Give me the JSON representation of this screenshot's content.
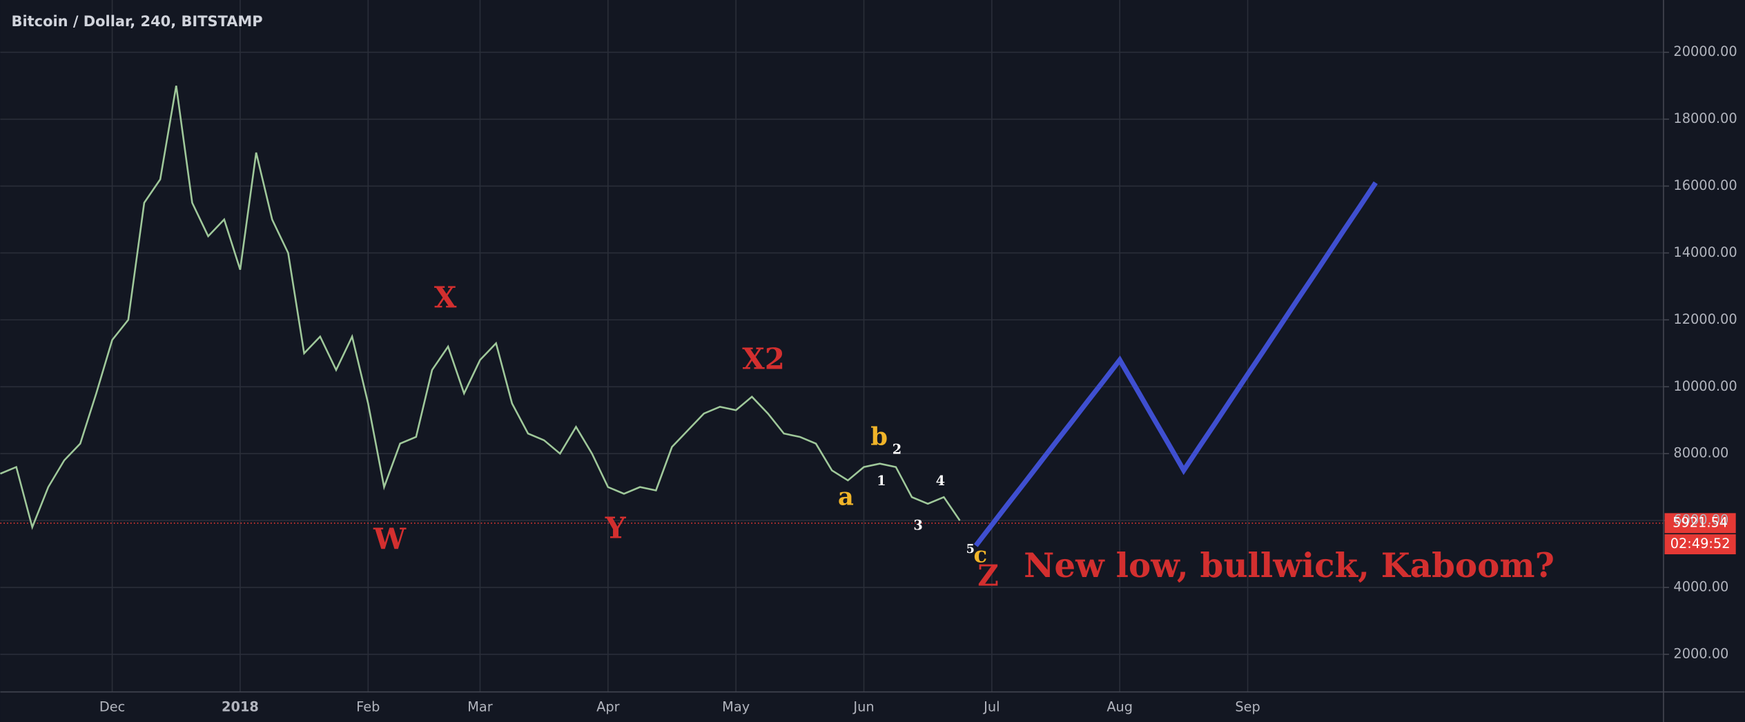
{
  "chart_data": {
    "type": "line",
    "title": "Bitcoin / Dollar, 240, BITSTAMP",
    "categories": [
      null,
      null,
      null,
      null,
      null,
      null,
      null,
      "Dec",
      null,
      null,
      null,
      null,
      null,
      null,
      null,
      "2018",
      null,
      null,
      null,
      null,
      null,
      null,
      null,
      "Feb",
      null,
      null,
      null,
      null,
      null,
      null,
      "Mar",
      null,
      null,
      null,
      null,
      null,
      null,
      null,
      "Apr",
      null,
      null,
      null,
      null,
      null,
      null,
      null,
      "May",
      null,
      null,
      null,
      null,
      null,
      null,
      null,
      "Jun",
      null,
      null,
      null,
      null,
      null,
      null,
      null,
      "Jul",
      null,
      null,
      null,
      null,
      null,
      null,
      null,
      "Aug",
      null,
      null,
      null,
      null,
      null,
      null,
      null,
      "Sep",
      null,
      null,
      null,
      null,
      null,
      null,
      null,
      null,
      null,
      null,
      null,
      null,
      null,
      null,
      null,
      null,
      null,
      null,
      null,
      null,
      null,
      null,
      null,
      null,
      null
    ],
    "series": [
      {
        "color": "#9fc89a",
        "values": [
          7400,
          7600,
          5800,
          7000,
          7800,
          8300,
          9800,
          11400,
          12000,
          15500,
          16200,
          19000,
          15500,
          14500,
          15000,
          13500,
          17000,
          15000,
          14000,
          11000,
          11500,
          10500,
          11500,
          9500,
          7000,
          8300,
          8500,
          10500,
          11200,
          9800,
          10800,
          11300,
          9500,
          8600,
          8400,
          8000,
          8800,
          8000,
          7000,
          6800,
          7000,
          6900,
          8200,
          8700,
          9200,
          9400,
          9300,
          9700,
          9200,
          8600,
          8500,
          8300,
          7500,
          7200,
          7600,
          7700,
          7600,
          6700,
          6500,
          6700,
          6000,
          null,
          null,
          null,
          null,
          null,
          null,
          null,
          null,
          null,
          null,
          null,
          null,
          null,
          null,
          null,
          null,
          null,
          null,
          null,
          null,
          null,
          null,
          null,
          null,
          null,
          null,
          null,
          null,
          null,
          null,
          null,
          null,
          null,
          null,
          null,
          null,
          null,
          null,
          null,
          null,
          null,
          null,
          null
        ]
      },
      {
        "color": "#3f4fd0",
        "values": [
          null,
          null,
          null,
          null,
          null,
          null,
          null,
          null,
          null,
          null,
          null,
          null,
          null,
          null,
          null,
          null,
          null,
          null,
          null,
          null,
          null,
          null,
          null,
          null,
          null,
          null,
          null,
          null,
          null,
          null,
          null,
          null,
          null,
          null,
          null,
          null,
          null,
          null,
          null,
          null,
          null,
          null,
          null,
          null,
          null,
          null,
          null,
          null,
          null,
          null,
          null,
          null,
          null,
          null,
          null,
          null,
          null,
          null,
          null,
          null,
          null,
          5250,
          5870,
          6490,
          7100,
          7720,
          8340,
          8950,
          9570,
          10180,
          10800,
          9980,
          9150,
          8330,
          7500,
          8220,
          8930,
          9650,
          10370,
          11080,
          11800,
          12520,
          13230,
          13950,
          14670,
          15380,
          16100,
          null,
          null,
          null,
          null,
          null,
          null,
          null,
          null,
          null,
          null,
          null,
          null,
          null,
          null,
          null,
          null,
          null
        ]
      }
    ],
    "ylim": [
      874,
      21563
    ],
    "yticks": [
      {
        "value": 2000,
        "label": "2000.00"
      },
      {
        "value": 4000,
        "label": "4000.00"
      },
      {
        "value": 6000,
        "label": "6000.00"
      },
      {
        "value": 8000,
        "label": "8000.00"
      },
      {
        "value": 10000,
        "label": "10000.00"
      },
      {
        "value": 12000,
        "label": "12000.00"
      },
      {
        "value": 14000,
        "label": "14000.00"
      },
      {
        "value": 16000,
        "label": "16000.00"
      },
      {
        "value": 18000,
        "label": "18000.00"
      },
      {
        "value": 20000,
        "label": "20000.00"
      }
    ],
    "grid": true,
    "last_price": 5921.54,
    "last_price_color": "#e53935",
    "countdown": "02:49:52",
    "annotations": [
      {
        "text": "X",
        "color": "#d32f2f"
      },
      {
        "text": "W",
        "color": "#d32f2f"
      },
      {
        "text": "Y",
        "color": "#d32f2f"
      },
      {
        "text": "X2",
        "color": "#d32f2f"
      },
      {
        "text": "b",
        "color": "#f0b429"
      },
      {
        "text": "2",
        "color": "#ffffff"
      },
      {
        "text": "a",
        "color": "#f0b429"
      },
      {
        "text": "1",
        "color": "#ffffff"
      },
      {
        "text": "3",
        "color": "#ffffff"
      },
      {
        "text": "4",
        "color": "#ffffff"
      },
      {
        "text": "5",
        "color": "#ffffff"
      },
      {
        "text": "c",
        "color": "#f0b429"
      },
      {
        "text": "Z",
        "color": "#d32f2f"
      },
      {
        "text": "New low, bullwick, Kaboom?",
        "color": "#d32f2f"
      }
    ]
  }
}
